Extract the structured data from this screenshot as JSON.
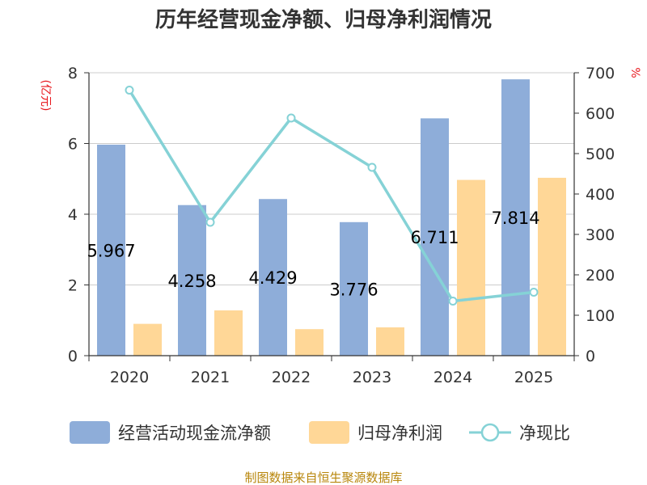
{
  "title": "历年经营现金净额、归母净利润情况",
  "source": "制图数据来自恒生聚源数据库",
  "colors": {
    "cash_flow": "#8eadd9",
    "net_profit": "#ffd797",
    "ratio": "#85d2d6",
    "unit": "#e8151b",
    "source": "#b8860b",
    "grid": "#cccccc",
    "axis": "#333333"
  },
  "chart_data": {
    "type": "bar",
    "categories": [
      "2020",
      "2021",
      "2022",
      "2023",
      "2024",
      "2025"
    ],
    "left_unit": "(亿元)",
    "right_unit": "%",
    "ylim_left": [
      0,
      8
    ],
    "yticks_left": [
      0,
      2,
      4,
      6,
      8
    ],
    "ylim_right": [
      0,
      700
    ],
    "yticks_right": [
      0,
      100,
      200,
      300,
      400,
      500,
      600,
      700
    ],
    "grid": true,
    "legend_position": "bottom",
    "series": [
      {
        "name": "经营活动现金流净额",
        "type": "bar",
        "axis": "left",
        "values": [
          5.967,
          4.258,
          4.429,
          3.776,
          6.711,
          7.814
        ],
        "labels": [
          "5.967",
          "4.258",
          "4.429",
          "3.776",
          "6.711",
          "7.814"
        ]
      },
      {
        "name": "归母净利润",
        "type": "bar",
        "axis": "left",
        "values": [
          0.9,
          1.28,
          0.75,
          0.8,
          4.97,
          5.03
        ]
      },
      {
        "name": "净现比",
        "type": "line",
        "axis": "right",
        "values": [
          657,
          330,
          588,
          466,
          135,
          157
        ]
      }
    ]
  }
}
